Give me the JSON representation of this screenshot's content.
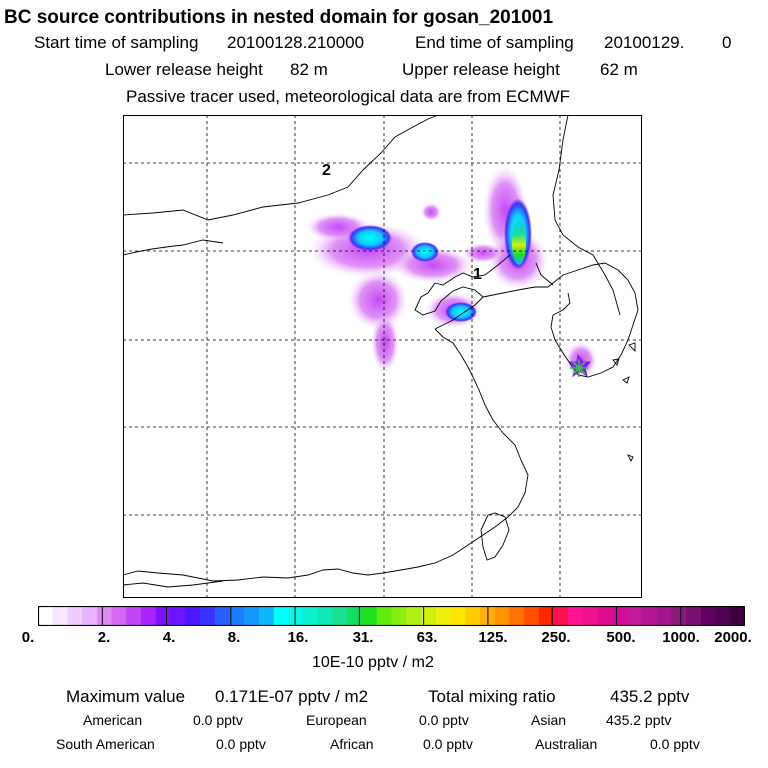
{
  "header": {
    "title": "BC  source contributions in nested domain for gosan_201001",
    "start_label": "Start time of sampling",
    "start_value": "20100128.210000",
    "end_label": "End time of sampling",
    "end_value": "20100129.",
    "end_extra": "0",
    "lower_label": "Lower release height",
    "lower_value": "82 m",
    "upper_label": "Upper release height",
    "upper_value": "62 m",
    "tracer_note": "Passive tracer used, meteorological data are from ECMWF"
  },
  "map": {
    "label_1": "1",
    "label_2": "2",
    "station_marker": "star-marker",
    "station_color": "#39c43a"
  },
  "colorbar": {
    "tick_labels": [
      "0.",
      "2.",
      "4.",
      "8.",
      "16.",
      "31.",
      "63.",
      "125.",
      "250.",
      "500.",
      "1000.",
      "2000."
    ],
    "colors": [
      "#ffffff",
      "#f8e6ff",
      "#f0ccff",
      "#e9b3ff",
      "#de8cf3",
      "#d468f3",
      "#c046f5",
      "#a823ff",
      "#8010ff",
      "#6a14ff",
      "#4f18ff",
      "#3a33ff",
      "#2860ff",
      "#1a7cff",
      "#1596ff",
      "#10b4ff",
      "#00ffff",
      "#06f7e6",
      "#0af0d0",
      "#0ee8b8",
      "#18e090",
      "#10e060",
      "#20e020",
      "#60ec10",
      "#88f010",
      "#b0f010",
      "#d0f010",
      "#eef010",
      "#ffe600",
      "#ffcc00",
      "#ffb000",
      "#ff9400",
      "#ff7400",
      "#ff5000",
      "#ff2800",
      "#ff1050",
      "#ff1493",
      "#f01090",
      "#e00c90",
      "#d00c98",
      "#c4199b",
      "#b31792",
      "#a0168a",
      "#861a7a",
      "#7a1070",
      "#600060",
      "#500050",
      "#400040"
    ],
    "units": "10E-10 pptv / m2"
  },
  "footer": {
    "max_label": "Maximum value",
    "max_value": "0.171E-07 pptv / m2",
    "total_label": "Total mixing ratio",
    "total_value": "435.2 pptv",
    "american_label": "American",
    "american_value": "0.0 pptv",
    "european_label": "European",
    "european_value": "0.0 pptv",
    "asian_label": "Asian",
    "asian_value": "435.2 pptv",
    "south_american_label": "South American",
    "south_american_value": "0.0 pptv",
    "african_label": "African",
    "african_value": "0.0 pptv",
    "australian_label": "Australian",
    "australian_value": "0.0 pptv"
  }
}
